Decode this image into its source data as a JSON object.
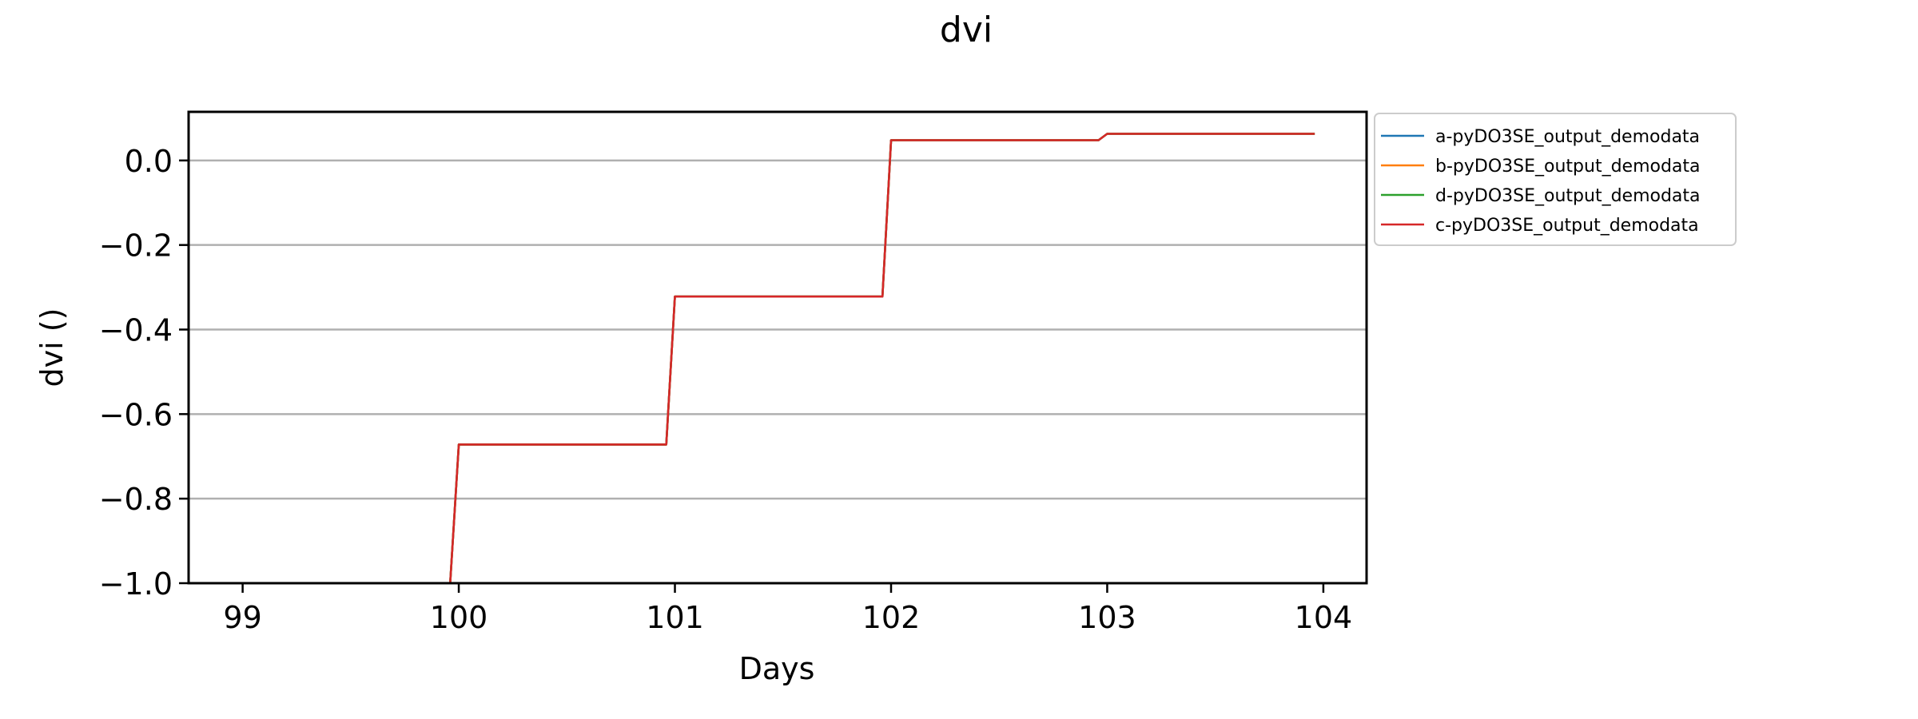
{
  "chart_data": {
    "type": "line",
    "title": "dvi",
    "xlabel": "Days",
    "ylabel": "dvi ()",
    "xlim": [
      98.75,
      104.2
    ],
    "ylim": [
      -1.0,
      0.115
    ],
    "x_ticks": [
      99,
      100,
      101,
      102,
      103,
      104
    ],
    "y_ticks": [
      0.0,
      -0.2,
      -0.4,
      -0.6,
      -0.8,
      -1.0
    ],
    "x_tick_labels": [
      "99",
      "100",
      "101",
      "102",
      "103",
      "104"
    ],
    "y_tick_labels": [
      "0.0",
      "−0.2",
      "−0.4",
      "−0.6",
      "−0.8",
      "−1.0"
    ],
    "grid": "horizontal",
    "legend_position": "outside-top-right",
    "series": [
      {
        "name": "a-pyDO3SE_output_demodata",
        "color": "#1f77b4",
        "x": [
          99.0,
          99.96,
          100.0,
          100.96,
          101.0,
          101.96,
          102.0,
          102.96,
          103.0,
          103.96
        ],
        "y": [
          -1.0,
          -1.0,
          -0.672,
          -0.672,
          -0.322,
          -0.322,
          0.048,
          0.048,
          0.063,
          0.063
        ]
      },
      {
        "name": "b-pyDO3SE_output_demodata",
        "color": "#ff7f0e",
        "x": [
          99.0,
          99.96,
          100.0,
          100.96,
          101.0,
          101.96,
          102.0,
          102.96,
          103.0,
          103.96
        ],
        "y": [
          -1.0,
          -1.0,
          -0.672,
          -0.672,
          -0.322,
          -0.322,
          0.048,
          0.048,
          0.063,
          0.063
        ]
      },
      {
        "name": "d-pyDO3SE_output_demodata",
        "color": "#2ca02c",
        "x": [
          99.0,
          99.96,
          100.0,
          100.96,
          101.0,
          101.96,
          102.0,
          102.96,
          103.0,
          103.96
        ],
        "y": [
          -1.0,
          -1.0,
          -0.672,
          -0.672,
          -0.322,
          -0.322,
          0.048,
          0.048,
          0.063,
          0.063
        ]
      },
      {
        "name": "c-pyDO3SE_output_demodata",
        "color": "#d62728",
        "x": [
          99.0,
          99.96,
          100.0,
          100.96,
          101.0,
          101.96,
          102.0,
          102.96,
          103.0,
          103.96
        ],
        "y": [
          -1.0,
          -1.0,
          -0.672,
          -0.672,
          -0.322,
          -0.322,
          0.048,
          0.048,
          0.063,
          0.063
        ]
      }
    ]
  }
}
